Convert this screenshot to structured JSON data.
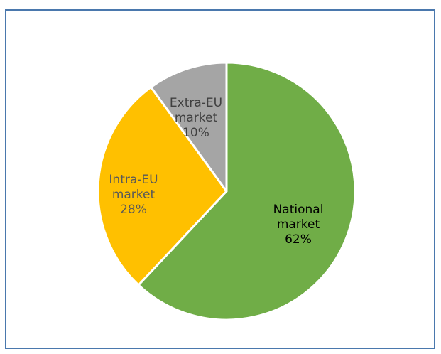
{
  "chart_data": {
    "type": "pie",
    "title": "",
    "slices": [
      {
        "name": "National market",
        "value": 62,
        "label_lines": [
          "National",
          "market",
          "62%"
        ],
        "color": "#70ad47",
        "label_color": "#000000"
      },
      {
        "name": "Intra-EU market",
        "value": 28,
        "label_lines": [
          "Intra-EU",
          "market",
          "28%"
        ],
        "color": "#ffc000",
        "label_color": "#595959"
      },
      {
        "name": "Extra-EU market",
        "value": 10,
        "label_lines": [
          "Extra-EU",
          "market",
          "10%"
        ],
        "color": "#a5a5a5",
        "label_color": "#404040"
      }
    ],
    "start_angle_deg": 0,
    "direction": "clockwise",
    "legend": "none"
  },
  "colors": {
    "frame_border": "#4a78ad",
    "slice_separator": "#ffffff"
  }
}
